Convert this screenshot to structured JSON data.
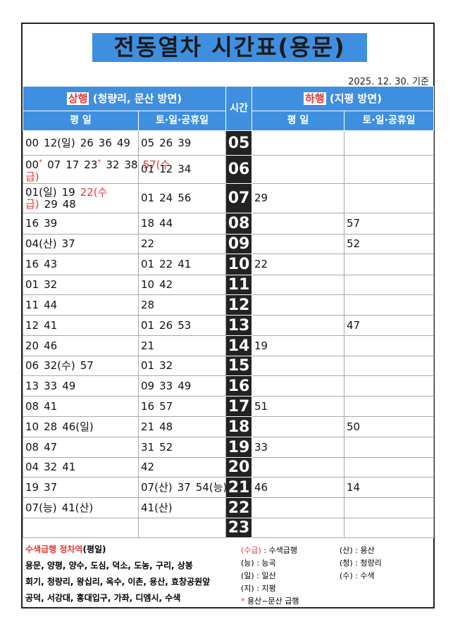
{
  "title": "전동열차 시간표(용문)",
  "date": "2025. 12. 30. 기준",
  "accent_color": "#e53935",
  "header": {
    "up": {
      "label": "상행",
      "direction": "(청량리, 문산 방면)"
    },
    "hour": "시간",
    "down": {
      "label": "하행",
      "direction": "(지평 방면)"
    },
    "weekday": "평 일",
    "holiday": "토·일·공휴일"
  },
  "rows": [
    {
      "hour": "05",
      "up_weekday": [
        "00",
        "12(일)",
        "26",
        "36",
        "49"
      ],
      "up_holiday": [
        "05",
        "26",
        "39"
      ],
      "down_weekday": [],
      "down_holiday": []
    },
    {
      "hour": "06",
      "up_weekday": [
        {
          "text": "00",
          "note": "*"
        },
        "07",
        "17",
        {
          "text": "23",
          "note": "*"
        },
        "32",
        "38",
        {
          "text": "57(수급)",
          "color": "#e53935"
        }
      ],
      "up_holiday": [
        "01",
        "12",
        "34"
      ],
      "down_weekday": [],
      "down_holiday": []
    },
    {
      "hour": "07",
      "up_weekday": [
        "01(일)",
        "19",
        {
          "text": "22(수급)",
          "color": "#e53935"
        },
        "29",
        "48"
      ],
      "up_holiday": [
        "01",
        "24",
        "56"
      ],
      "down_weekday": [
        "29"
      ],
      "down_holiday": []
    },
    {
      "hour": "08",
      "up_weekday": [
        "16",
        "39"
      ],
      "up_holiday": [
        "18",
        "44"
      ],
      "down_weekday": [],
      "down_holiday": [
        "57"
      ]
    },
    {
      "hour": "09",
      "up_weekday": [
        "04(산)",
        "37"
      ],
      "up_holiday": [
        "22"
      ],
      "down_weekday": [],
      "down_holiday": [
        "52"
      ]
    },
    {
      "hour": "10",
      "up_weekday": [
        "16",
        "43"
      ],
      "up_holiday": [
        "01",
        "22",
        "41"
      ],
      "down_weekday": [
        "22"
      ],
      "down_holiday": []
    },
    {
      "hour": "11",
      "up_weekday": [
        "01",
        "32"
      ],
      "up_holiday": [
        "10",
        "42"
      ],
      "down_weekday": [],
      "down_holiday": []
    },
    {
      "hour": "12",
      "up_weekday": [
        "11",
        "44"
      ],
      "up_holiday": [
        "28"
      ],
      "down_weekday": [],
      "down_holiday": []
    },
    {
      "hour": "13",
      "up_weekday": [
        "12",
        "41"
      ],
      "up_holiday": [
        "01",
        "26",
        "53"
      ],
      "down_weekday": [],
      "down_holiday": [
        "47"
      ]
    },
    {
      "hour": "14",
      "up_weekday": [
        "20",
        "46"
      ],
      "up_holiday": [
        "21"
      ],
      "down_weekday": [
        "19"
      ],
      "down_holiday": []
    },
    {
      "hour": "15",
      "up_weekday": [
        "06",
        "32(수)",
        "57"
      ],
      "up_holiday": [
        "01",
        "32"
      ],
      "down_weekday": [],
      "down_holiday": []
    },
    {
      "hour": "16",
      "up_weekday": [
        "13",
        "33",
        "49"
      ],
      "up_holiday": [
        "09",
        "33",
        "49"
      ],
      "down_weekday": [],
      "down_holiday": []
    },
    {
      "hour": "17",
      "up_weekday": [
        "08",
        "41"
      ],
      "up_holiday": [
        "16",
        "57"
      ],
      "down_weekday": [
        "51"
      ],
      "down_holiday": []
    },
    {
      "hour": "18",
      "up_weekday": [
        "10",
        "28",
        "46(일)"
      ],
      "up_holiday": [
        "21",
        "48"
      ],
      "down_weekday": [],
      "down_holiday": [
        "50"
      ]
    },
    {
      "hour": "19",
      "up_weekday": [
        "08",
        "47"
      ],
      "up_holiday": [
        "31",
        "52"
      ],
      "down_weekday": [
        "33"
      ],
      "down_holiday": []
    },
    {
      "hour": "20",
      "up_weekday": [
        "04",
        "32",
        "41"
      ],
      "up_holiday": [
        "42"
      ],
      "down_weekday": [],
      "down_holiday": []
    },
    {
      "hour": "21",
      "up_weekday": [
        "19",
        "37"
      ],
      "up_holiday": [
        "07(산)",
        "37",
        "54(능)"
      ],
      "down_weekday": [
        "46"
      ],
      "down_holiday": [
        "14"
      ]
    },
    {
      "hour": "22",
      "up_weekday": [
        "07(능)",
        "41(산)"
      ],
      "up_holiday": [
        "41(산)"
      ],
      "down_weekday": [],
      "down_holiday": []
    },
    {
      "hour": "23",
      "up_weekday": [],
      "up_holiday": [],
      "down_weekday": [],
      "down_holiday": []
    }
  ],
  "stops": {
    "title": "수색급행 정차역",
    "suffix": "(평일)",
    "lines": [
      "용문, 양평, 양수, 도심, 덕소, 도농, 구리, 상봉",
      "회기, 청량리, 왕십리, 옥수, 이촌, 용산, 효창공원앞",
      "공덕, 서강대, 홍대입구, 가좌, 디엠시, 수색"
    ]
  },
  "legend": {
    "separator": ":",
    "items": [
      {
        "key": "(수급)",
        "value": "수색급행",
        "color": "#e53935"
      },
      {
        "key": "(산)",
        "value": "용산"
      },
      {
        "key": "(능)",
        "value": "능곡"
      },
      {
        "key": "(청)",
        "value": "청량리"
      },
      {
        "key": "(일)",
        "value": "일산"
      },
      {
        "key": "(수)",
        "value": "수색"
      },
      {
        "key": "(지)",
        "value": "지평"
      }
    ],
    "note": {
      "mark": "*",
      "text": "용산~문산 급행"
    }
  }
}
